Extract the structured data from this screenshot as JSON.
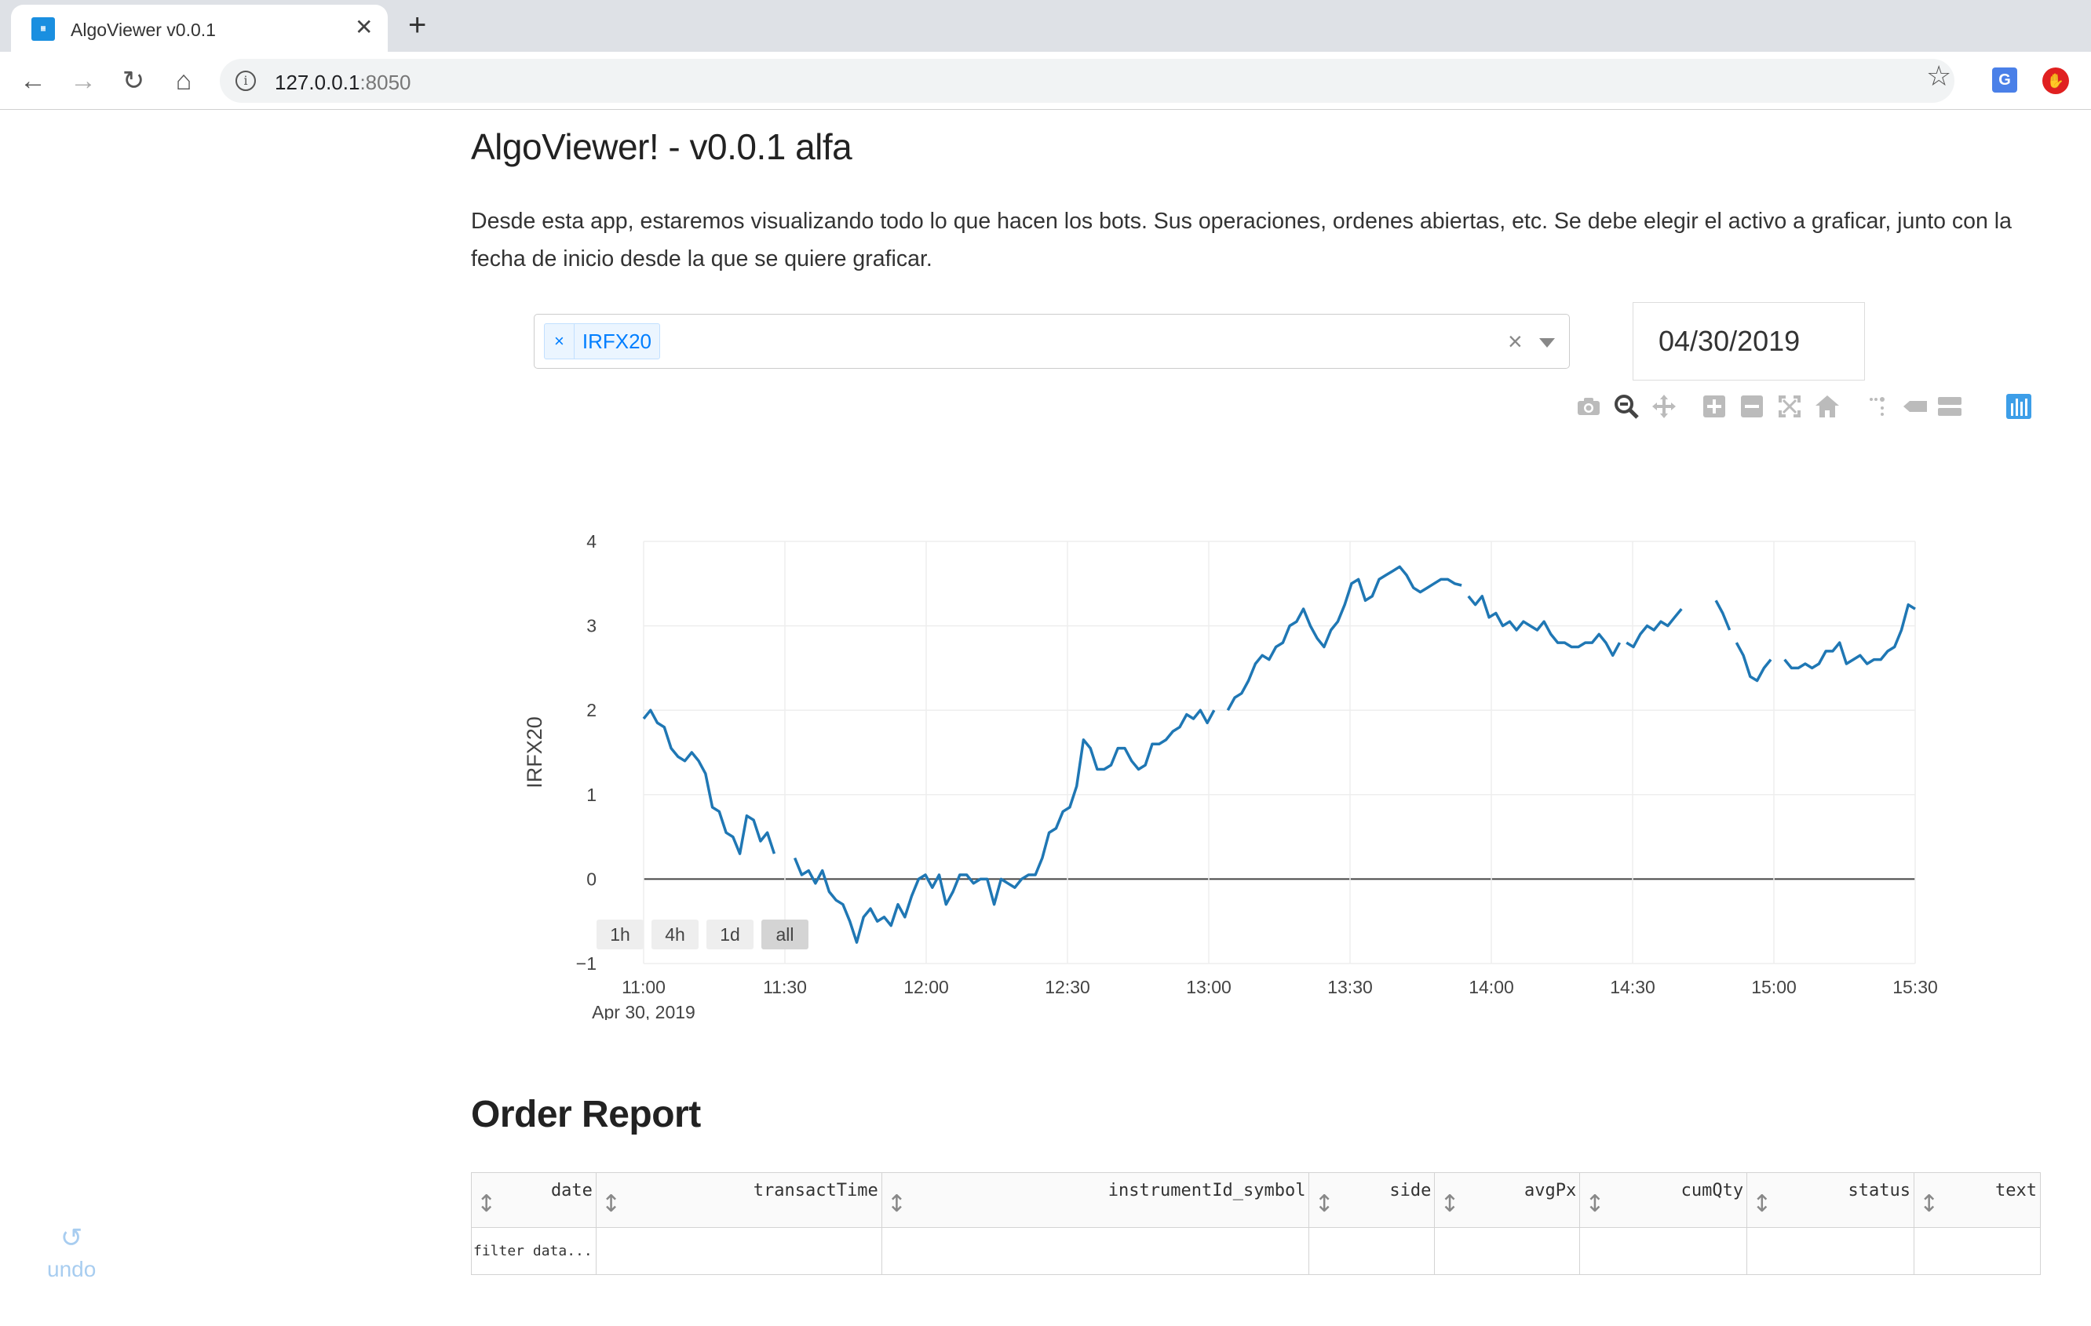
{
  "browser": {
    "tab_title": "AlgoViewer v0.0.1",
    "url_host": "127.0.0.1",
    "url_port": ":8050"
  },
  "page": {
    "title": "AlgoViewer! - v0.0.1 alfa",
    "intro": "Desde esta app, estaremos visualizando todo lo que hacen los bots. Sus operaciones, ordenes abiertas, etc. Se debe elegir el activo a graficar, junto con la fecha de inicio desde la que se quiere graficar."
  },
  "controls": {
    "selected_asset": "IRFX20",
    "remove_chip": "×",
    "clear": "×",
    "date_value": "04/30/2019"
  },
  "modebar": [
    "camera-icon",
    "zoom-icon",
    "pan-icon",
    "zoom-in-icon",
    "zoom-out-icon",
    "autoscale-icon",
    "reset-axes-icon",
    "spike-lines-icon",
    "hover-closest-icon",
    "hover-compare-icon",
    "plotly-logo-icon"
  ],
  "range_buttons": [
    "1h",
    "4h",
    "1d",
    "all"
  ],
  "chart_data": {
    "type": "line",
    "ylabel": "IRFX20",
    "xlabel": "",
    "ylim": [
      -1,
      4
    ],
    "yticks": [
      "4",
      "3",
      "2",
      "1",
      "0",
      "−1"
    ],
    "xticks": [
      "11:00",
      "11:30",
      "12:00",
      "12:30",
      "13:00",
      "13:30",
      "14:00",
      "14:30",
      "15:00",
      "15:30"
    ],
    "x_date_label": "Apr 30, 2019",
    "xlim": [
      "11:00",
      "15:30"
    ],
    "grid": true,
    "color": "#1f77b4",
    "series": [
      {
        "segments": [
          [
            [
              0,
              1.9
            ],
            [
              1,
              2.0
            ],
            [
              2,
              1.85
            ],
            [
              3,
              1.8
            ],
            [
              4,
              1.55
            ],
            [
              5,
              1.45
            ],
            [
              6,
              1.4
            ],
            [
              7,
              1.5
            ],
            [
              8,
              1.4
            ],
            [
              9,
              1.25
            ],
            [
              10,
              0.85
            ],
            [
              11,
              0.8
            ],
            [
              12,
              0.55
            ],
            [
              13,
              0.5
            ],
            [
              14,
              0.3
            ],
            [
              15,
              0.75
            ],
            [
              16,
              0.7
            ],
            [
              17,
              0.45
            ],
            [
              18,
              0.55
            ],
            [
              19,
              0.3
            ]
          ],
          [
            [
              22,
              0.25
            ],
            [
              23,
              0.05
            ],
            [
              24,
              0.1
            ],
            [
              25,
              -0.05
            ],
            [
              26,
              0.1
            ],
            [
              27,
              -0.15
            ],
            [
              28,
              -0.25
            ],
            [
              29,
              -0.3
            ],
            [
              30,
              -0.5
            ],
            [
              31,
              -0.75
            ],
            [
              32,
              -0.45
            ],
            [
              33,
              -0.35
            ],
            [
              34,
              -0.5
            ],
            [
              35,
              -0.45
            ],
            [
              36,
              -0.55
            ],
            [
              37,
              -0.3
            ],
            [
              38,
              -0.45
            ],
            [
              39,
              -0.2
            ],
            [
              40,
              0.0
            ],
            [
              41,
              0.05
            ],
            [
              42,
              -0.1
            ],
            [
              43,
              0.05
            ],
            [
              44,
              -0.3
            ],
            [
              45,
              -0.15
            ],
            [
              46,
              0.05
            ],
            [
              47,
              0.05
            ],
            [
              48,
              -0.05
            ],
            [
              49,
              0.0
            ],
            [
              50,
              0.0
            ],
            [
              51,
              -0.3
            ],
            [
              52,
              0.0
            ],
            [
              53,
              -0.05
            ],
            [
              54,
              -0.1
            ],
            [
              55,
              0.0
            ],
            [
              56,
              0.05
            ],
            [
              57,
              0.05
            ],
            [
              58,
              0.25
            ],
            [
              59,
              0.55
            ],
            [
              60,
              0.6
            ],
            [
              61,
              0.8
            ],
            [
              62,
              0.85
            ],
            [
              63,
              1.1
            ],
            [
              64,
              1.65
            ],
            [
              65,
              1.55
            ],
            [
              66,
              1.3
            ],
            [
              67,
              1.3
            ],
            [
              68,
              1.35
            ],
            [
              69,
              1.55
            ],
            [
              70,
              1.55
            ],
            [
              71,
              1.4
            ],
            [
              72,
              1.3
            ],
            [
              73,
              1.35
            ],
            [
              74,
              1.6
            ],
            [
              75,
              1.6
            ],
            [
              76,
              1.65
            ],
            [
              77,
              1.75
            ],
            [
              78,
              1.8
            ],
            [
              79,
              1.95
            ],
            [
              80,
              1.9
            ],
            [
              81,
              2.0
            ],
            [
              82,
              1.85
            ],
            [
              83,
              2.0
            ]
          ],
          [
            [
              85,
              2.0
            ],
            [
              86,
              2.15
            ],
            [
              87,
              2.2
            ],
            [
              88,
              2.35
            ],
            [
              89,
              2.55
            ],
            [
              90,
              2.65
            ],
            [
              91,
              2.6
            ],
            [
              92,
              2.75
            ],
            [
              93,
              2.8
            ],
            [
              94,
              3.0
            ],
            [
              95,
              3.05
            ],
            [
              96,
              3.2
            ],
            [
              97,
              3.0
            ],
            [
              98,
              2.85
            ],
            [
              99,
              2.75
            ],
            [
              100,
              2.95
            ],
            [
              101,
              3.05
            ],
            [
              102,
              3.25
            ],
            [
              103,
              3.5
            ],
            [
              104,
              3.55
            ],
            [
              105,
              3.3
            ],
            [
              106,
              3.35
            ],
            [
              107,
              3.55
            ],
            [
              108,
              3.6
            ],
            [
              109,
              3.65
            ],
            [
              110,
              3.7
            ],
            [
              111,
              3.6
            ],
            [
              112,
              3.45
            ],
            [
              113,
              3.4
            ],
            [
              114,
              3.45
            ],
            [
              115,
              3.5
            ],
            [
              116,
              3.55
            ],
            [
              117,
              3.55
            ],
            [
              118,
              3.5
            ],
            [
              119,
              3.48
            ]
          ],
          [
            [
              120,
              3.35
            ],
            [
              121,
              3.25
            ],
            [
              122,
              3.35
            ],
            [
              123,
              3.1
            ],
            [
              124,
              3.15
            ],
            [
              125,
              3.0
            ],
            [
              126,
              3.05
            ],
            [
              127,
              2.95
            ],
            [
              128,
              3.05
            ],
            [
              129,
              3.0
            ],
            [
              130,
              2.95
            ],
            [
              131,
              3.05
            ],
            [
              132,
              2.9
            ],
            [
              133,
              2.8
            ],
            [
              134,
              2.8
            ],
            [
              135,
              2.75
            ],
            [
              136,
              2.75
            ],
            [
              137,
              2.8
            ],
            [
              138,
              2.8
            ],
            [
              139,
              2.9
            ],
            [
              140,
              2.8
            ],
            [
              141,
              2.65
            ],
            [
              142,
              2.8
            ]
          ],
          [
            [
              143,
              2.8
            ],
            [
              144,
              2.75
            ],
            [
              145,
              2.9
            ],
            [
              146,
              3.0
            ],
            [
              147,
              2.95
            ],
            [
              148,
              3.05
            ],
            [
              149,
              3.0
            ],
            [
              150,
              3.1
            ],
            [
              151,
              3.2
            ]
          ],
          [
            [
              156,
              3.3
            ],
            [
              157,
              3.15
            ],
            [
              158,
              2.95
            ]
          ],
          [
            [
              159,
              2.8
            ],
            [
              160,
              2.65
            ],
            [
              161,
              2.4
            ],
            [
              162,
              2.35
            ],
            [
              163,
              2.5
            ],
            [
              164,
              2.6
            ]
          ],
          [
            [
              166,
              2.6
            ],
            [
              167,
              2.5
            ],
            [
              168,
              2.5
            ],
            [
              169,
              2.55
            ],
            [
              170,
              2.5
            ],
            [
              171,
              2.55
            ],
            [
              172,
              2.7
            ],
            [
              173,
              2.7
            ],
            [
              174,
              2.8
            ],
            [
              175,
              2.55
            ],
            [
              176,
              2.6
            ],
            [
              177,
              2.65
            ],
            [
              178,
              2.55
            ],
            [
              179,
              2.6
            ],
            [
              180,
              2.6
            ],
            [
              181,
              2.7
            ],
            [
              182,
              2.75
            ],
            [
              183,
              2.95
            ],
            [
              184,
              3.25
            ],
            [
              185,
              3.2
            ]
          ]
        ]
      }
    ]
  },
  "order_report": {
    "title": "Order Report",
    "columns": [
      "date",
      "transactTime",
      "instrumentId_symbol",
      "side",
      "avgPx",
      "cumQty",
      "status",
      "text"
    ],
    "filter_placeholder": "filter data..."
  },
  "undo": {
    "label": "undo"
  }
}
